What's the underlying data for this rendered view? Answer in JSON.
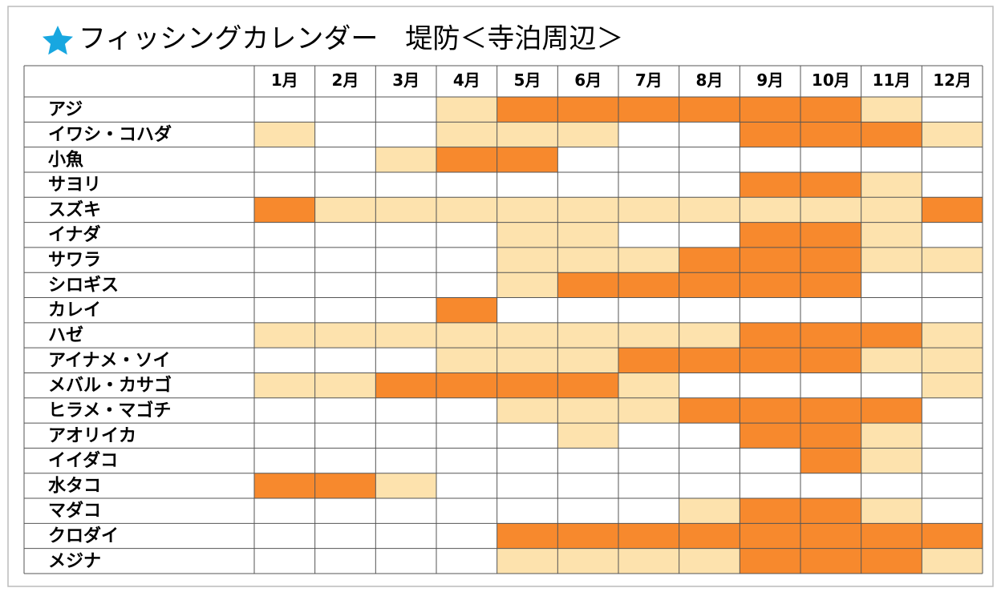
{
  "header": {
    "title": "フィッシングカレンダー　堤防＜寺泊周辺＞"
  },
  "table": {
    "colors": [
      "#ffffff",
      "#fde2ad",
      "#f7892d"
    ],
    "months": [
      "1月",
      "2月",
      "3月",
      "4月",
      "5月",
      "6月",
      "7月",
      "8月",
      "9月",
      "10月",
      "11月",
      "12月"
    ],
    "rows": [
      {
        "name": "アジ",
        "cells": [
          0,
          0,
          0,
          1,
          2,
          2,
          2,
          2,
          2,
          2,
          1,
          0
        ]
      },
      {
        "name": "イワシ・コハダ",
        "cells": [
          1,
          0,
          0,
          1,
          1,
          1,
          0,
          0,
          2,
          2,
          2,
          1
        ]
      },
      {
        "name": "小魚",
        "cells": [
          0,
          0,
          1,
          2,
          2,
          0,
          0,
          0,
          0,
          0,
          0,
          0
        ]
      },
      {
        "name": "サヨリ",
        "cells": [
          0,
          0,
          0,
          0,
          0,
          0,
          0,
          0,
          2,
          2,
          1,
          0
        ]
      },
      {
        "name": "スズキ",
        "cells": [
          2,
          1,
          1,
          1,
          1,
          1,
          1,
          1,
          1,
          1,
          1,
          2
        ]
      },
      {
        "name": "イナダ",
        "cells": [
          0,
          0,
          0,
          0,
          1,
          1,
          0,
          0,
          2,
          2,
          1,
          0
        ]
      },
      {
        "name": "サワラ",
        "cells": [
          0,
          0,
          0,
          0,
          1,
          1,
          1,
          2,
          2,
          2,
          1,
          1
        ]
      },
      {
        "name": "シロギス",
        "cells": [
          0,
          0,
          0,
          0,
          1,
          2,
          2,
          2,
          2,
          2,
          0,
          0
        ]
      },
      {
        "name": "カレイ",
        "cells": [
          0,
          0,
          0,
          2,
          0,
          0,
          0,
          0,
          0,
          0,
          0,
          0
        ]
      },
      {
        "name": "ハゼ",
        "cells": [
          1,
          1,
          1,
          1,
          1,
          1,
          1,
          1,
          2,
          2,
          2,
          1
        ]
      },
      {
        "name": "アイナメ・ソイ",
        "cells": [
          0,
          0,
          0,
          1,
          1,
          1,
          2,
          2,
          2,
          2,
          1,
          1
        ]
      },
      {
        "name": "メバル・カサゴ",
        "cells": [
          1,
          1,
          2,
          2,
          2,
          2,
          1,
          0,
          0,
          0,
          0,
          1
        ]
      },
      {
        "name": "ヒラメ・マゴチ",
        "cells": [
          0,
          0,
          0,
          0,
          1,
          1,
          1,
          2,
          2,
          2,
          2,
          0
        ]
      },
      {
        "name": "アオリイカ",
        "cells": [
          0,
          0,
          0,
          0,
          0,
          1,
          0,
          0,
          2,
          2,
          1,
          0
        ]
      },
      {
        "name": "イイダコ",
        "cells": [
          0,
          0,
          0,
          0,
          0,
          0,
          0,
          0,
          0,
          2,
          1,
          0
        ]
      },
      {
        "name": "水タコ",
        "cells": [
          2,
          2,
          1,
          0,
          0,
          0,
          0,
          0,
          0,
          0,
          0,
          0
        ]
      },
      {
        "name": "マダコ",
        "cells": [
          0,
          0,
          0,
          0,
          0,
          0,
          0,
          1,
          2,
          2,
          1,
          0
        ]
      },
      {
        "name": "クロダイ",
        "cells": [
          0,
          0,
          0,
          0,
          2,
          2,
          2,
          2,
          2,
          2,
          2,
          2
        ]
      },
      {
        "name": "メジナ",
        "cells": [
          0,
          0,
          0,
          0,
          1,
          1,
          1,
          1,
          2,
          2,
          2,
          1
        ]
      }
    ]
  }
}
